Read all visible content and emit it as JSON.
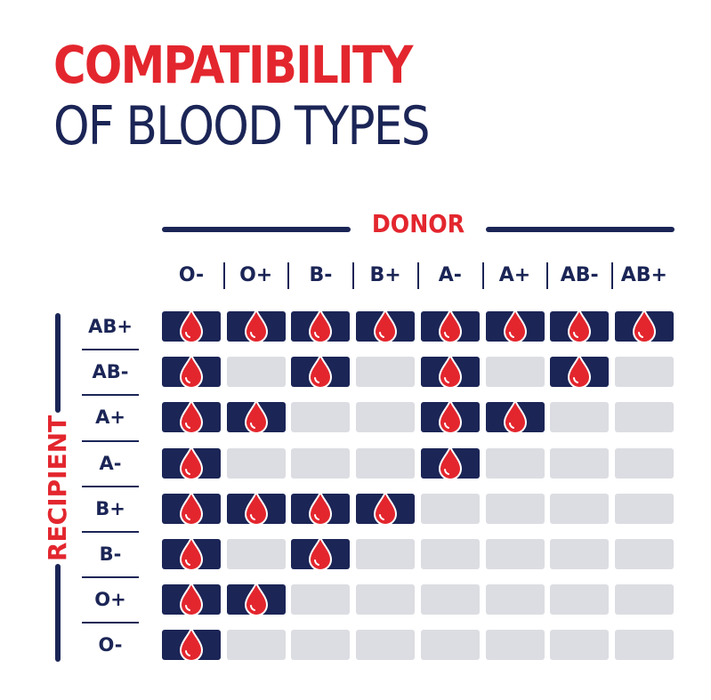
{
  "title": {
    "line1": "COMPATIBILITY",
    "line2": "OF BLOOD TYPES"
  },
  "axis": {
    "donor_label": "DONOR",
    "recipient_label": "RECIPIENT"
  },
  "donors": [
    "O-",
    "O+",
    "B-",
    "B+",
    "A-",
    "A+",
    "AB-",
    "AB+"
  ],
  "recipients": [
    "AB+",
    "AB-",
    "A+",
    "A-",
    "B+",
    "B-",
    "O+",
    "O-"
  ],
  "compatibility": [
    [
      1,
      1,
      1,
      1,
      1,
      1,
      1,
      1
    ],
    [
      1,
      0,
      1,
      0,
      1,
      0,
      1,
      0
    ],
    [
      1,
      1,
      0,
      0,
      1,
      1,
      0,
      0
    ],
    [
      1,
      0,
      0,
      0,
      1,
      0,
      0,
      0
    ],
    [
      1,
      1,
      1,
      1,
      0,
      0,
      0,
      0
    ],
    [
      1,
      0,
      1,
      0,
      0,
      0,
      0,
      0
    ],
    [
      1,
      1,
      0,
      0,
      0,
      0,
      0,
      0
    ],
    [
      1,
      0,
      0,
      0,
      0,
      0,
      0,
      0
    ]
  ],
  "colors": {
    "accent_red": "#e3262e",
    "navy": "#1b2556",
    "empty_cell": "#dcdde2"
  },
  "icons": {
    "compatible_marker": "blood-drop-icon"
  }
}
